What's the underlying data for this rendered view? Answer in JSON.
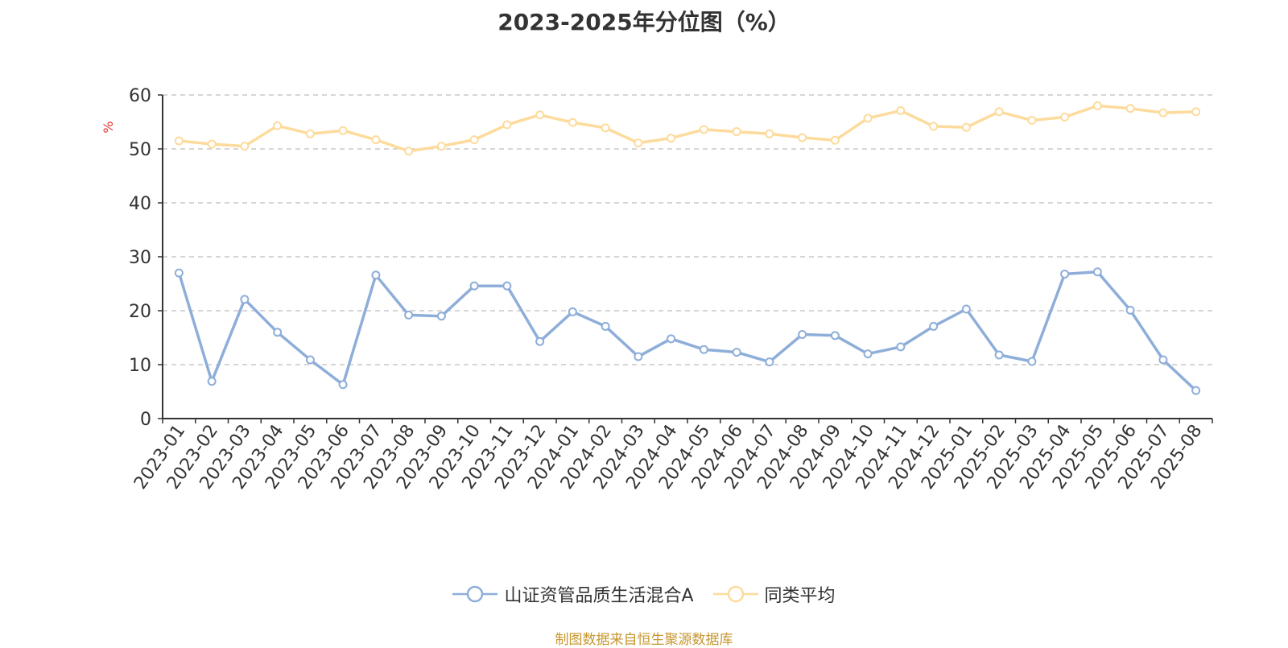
{
  "title": "2023-2025年分位图（%）",
  "source": "制图数据来自恒生聚源数据库",
  "chart_data": {
    "type": "line",
    "title": "2023-2025年分位图（%）",
    "ylabel": "%",
    "xlabel": "",
    "ylim": [
      0,
      60
    ],
    "yticks": [
      0,
      10,
      20,
      30,
      40,
      50,
      60
    ],
    "grid": true,
    "legend_position": "bottom",
    "categories": [
      "2023-01",
      "2023-02",
      "2023-03",
      "2023-04",
      "2023-05",
      "2023-06",
      "2023-07",
      "2023-08",
      "2023-09",
      "2023-10",
      "2023-11",
      "2023-12",
      "2024-01",
      "2024-02",
      "2024-03",
      "2024-04",
      "2024-05",
      "2024-06",
      "2024-07",
      "2024-08",
      "2024-09",
      "2024-10",
      "2024-11",
      "2024-12",
      "2025-01",
      "2025-02",
      "2025-03",
      "2025-04",
      "2025-05",
      "2025-06",
      "2025-07",
      "2025-08"
    ],
    "series": [
      {
        "name": "山证资管品质生活混合A",
        "color": "#8eaed9",
        "values": [
          27.0,
          6.9,
          22.1,
          16.0,
          10.9,
          6.3,
          26.6,
          19.2,
          19.0,
          24.6,
          24.6,
          14.3,
          19.8,
          17.1,
          11.5,
          14.8,
          12.8,
          12.3,
          10.5,
          15.6,
          15.4,
          12.0,
          13.3,
          17.1,
          20.3,
          11.8,
          10.6,
          26.8,
          27.2,
          20.1,
          10.9,
          5.2
        ]
      },
      {
        "name": "同类平均",
        "color": "#fddb9c",
        "values": [
          51.5,
          50.9,
          50.5,
          54.3,
          52.8,
          53.4,
          51.7,
          49.6,
          50.5,
          51.7,
          54.5,
          56.3,
          54.9,
          53.9,
          51.1,
          52.0,
          53.6,
          53.2,
          52.8,
          52.1,
          51.6,
          55.7,
          57.1,
          54.2,
          54.0,
          56.9,
          55.3,
          55.9,
          58.0,
          57.5,
          56.7,
          56.9
        ]
      }
    ]
  }
}
